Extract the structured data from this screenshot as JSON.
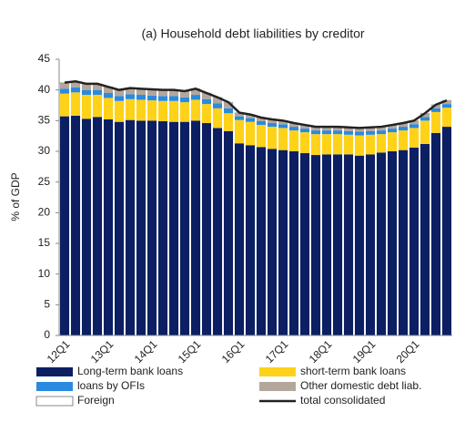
{
  "chart_data": {
    "type": "bar",
    "stacked": true,
    "title": "(a) Household  debt liabilities by creditor",
    "y_label": "% of GDP",
    "categories": [
      "12Q1",
      null,
      null,
      null,
      "13Q1",
      null,
      null,
      null,
      "14Q1",
      null,
      null,
      null,
      "15Q1",
      null,
      null,
      null,
      "16Q1",
      null,
      null,
      null,
      "17Q1",
      null,
      null,
      null,
      "18Q1",
      null,
      null,
      null,
      "19Q1",
      null,
      null,
      null,
      "20Q1",
      null,
      null,
      null
    ],
    "ylim": [
      0,
      45
    ],
    "yticks": [
      0,
      5,
      10,
      15,
      20,
      25,
      30,
      35,
      40,
      45
    ],
    "series": [
      {
        "name": "Long-term bank loans",
        "color": "#0b1f62",
        "values": [
          35.7,
          35.8,
          35.3,
          35.6,
          35.2,
          34.8,
          35.1,
          35.0,
          35.0,
          34.9,
          34.8,
          34.8,
          35.0,
          34.6,
          33.8,
          33.3,
          31.3,
          31.0,
          30.7,
          30.4,
          30.2,
          30.0,
          29.7,
          29.4,
          29.5,
          29.5,
          29.5,
          29.3,
          29.5,
          29.8,
          30.0,
          30.2,
          30.6,
          31.2,
          33.0,
          34.0
        ]
      },
      {
        "name": "short-term bank loans",
        "color": "#ffd21a",
        "values": [
          3.7,
          3.8,
          3.9,
          3.6,
          3.5,
          3.4,
          3.4,
          3.4,
          3.3,
          3.3,
          3.4,
          3.2,
          3.4,
          3.1,
          3.2,
          2.9,
          3.8,
          3.8,
          3.6,
          3.6,
          3.6,
          3.4,
          3.4,
          3.4,
          3.3,
          3.3,
          3.2,
          3.3,
          3.2,
          3.0,
          3.1,
          3.2,
          3.2,
          3.8,
          3.4,
          3.1
        ]
      },
      {
        "name": "loans by OFIs",
        "color": "#2a8ae0",
        "values": [
          0.8,
          0.8,
          0.8,
          0.8,
          0.8,
          0.8,
          0.8,
          0.8,
          0.8,
          0.8,
          0.8,
          0.8,
          0.8,
          0.8,
          0.8,
          0.8,
          0.6,
          0.6,
          0.6,
          0.6,
          0.6,
          0.6,
          0.6,
          0.6,
          0.6,
          0.6,
          0.6,
          0.6,
          0.6,
          0.6,
          0.6,
          0.6,
          0.6,
          0.6,
          0.6,
          0.6
        ]
      },
      {
        "name": "Other domestic debt liab.",
        "color": "#b3a79b",
        "values": [
          0.9,
          0.9,
          0.9,
          0.9,
          0.9,
          0.9,
          0.9,
          0.9,
          0.9,
          0.9,
          0.9,
          0.9,
          0.9,
          0.9,
          0.9,
          0.9,
          0.5,
          0.5,
          0.5,
          0.5,
          0.5,
          0.5,
          0.5,
          0.5,
          0.5,
          0.5,
          0.5,
          0.5,
          0.5,
          0.5,
          0.5,
          0.5,
          0.5,
          0.5,
          0.5,
          0.5
        ]
      },
      {
        "name": "Foreign",
        "color": "#ffffff",
        "values": [
          0.1,
          0.1,
          0.1,
          0.1,
          0.1,
          0.1,
          0.1,
          0.1,
          0.1,
          0.1,
          0.1,
          0.1,
          0.1,
          0.1,
          0.1,
          0.1,
          0.1,
          0.1,
          0.1,
          0.1,
          0.1,
          0.1,
          0.1,
          0.1,
          0.1,
          0.1,
          0.1,
          0.1,
          0.1,
          0.1,
          0.1,
          0.1,
          0.1,
          0.1,
          0.1,
          0.1
        ]
      },
      {
        "name": "total consolidated",
        "type": "line",
        "color": "#222222",
        "values": [
          41.2,
          41.4,
          41.0,
          41.0,
          40.5,
          40.0,
          40.3,
          40.2,
          40.1,
          40.0,
          40.0,
          39.8,
          40.2,
          39.5,
          38.8,
          38.0,
          36.3,
          36.0,
          35.5,
          35.2,
          35.0,
          34.6,
          34.3,
          34.0,
          34.0,
          34.0,
          33.9,
          33.8,
          33.9,
          34.0,
          34.3,
          34.6,
          35.0,
          36.2,
          37.6,
          38.3
        ]
      }
    ]
  }
}
